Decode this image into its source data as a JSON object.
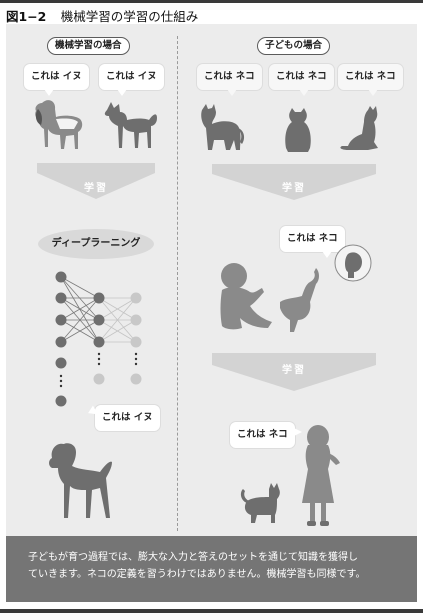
{
  "figure": {
    "number": "図1−2",
    "title": "機械学習の学習の仕組み"
  },
  "left": {
    "heading": "機械学習の場合",
    "bubbles": [
      "これは イヌ",
      "これは イヌ"
    ],
    "arrow_label": "学習",
    "method": "ディープラーニング",
    "output_bubble": "これは イヌ"
  },
  "right": {
    "heading": "子どもの場合",
    "bubbles": [
      "これは ネコ",
      "これは ネコ",
      "これは ネコ"
    ],
    "arrow_label_top": "学習",
    "teacher_bubble": "これは ネコ",
    "arrow_label_bottom": "学習",
    "output_bubble": "これは ネコ"
  },
  "footer": {
    "line1": "子どもが育つ過程では、膨大な入力と答えのセットを通じて知識を獲得し",
    "line2": "ていきます。ネコの定義を習うわけではありません。機械学習も同様です。"
  },
  "colors": {
    "silhouette": "#6e6e6e",
    "arrow": "#cfcfcf",
    "node": "#6e6e6e",
    "node_light": "#c8c8c8",
    "footer": "#757575",
    "panel": "#ececec"
  }
}
